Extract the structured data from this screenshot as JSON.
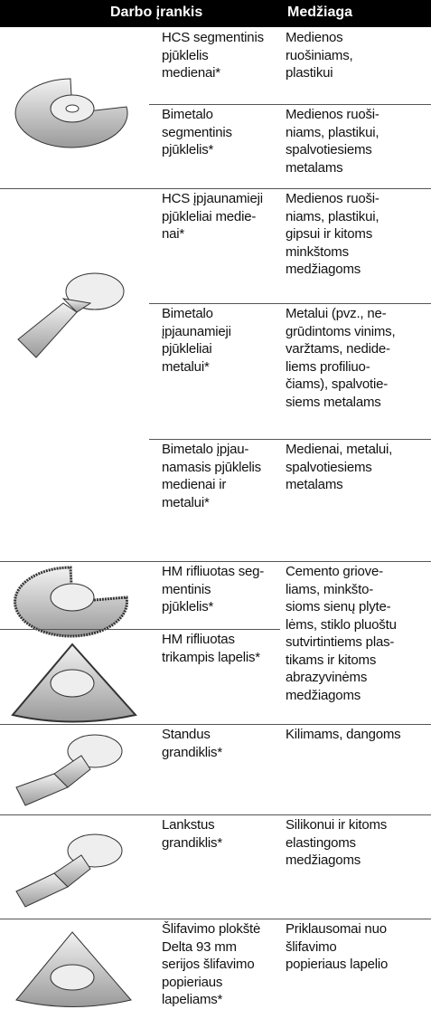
{
  "header": {
    "tool": "Darbo įrankis",
    "material": "Medžiaga"
  },
  "rows": [
    {
      "tool": [
        "HCS segmentinis",
        "pjūklelis",
        "medienai*"
      ],
      "material": [
        "Medienos",
        "ruošiniams,",
        "plastikui"
      ]
    },
    {
      "tool": [
        "Bimetalo",
        "segmentinis",
        "pjūklelis*"
      ],
      "material": [
        "Medienos ruoši-",
        "niams, plastikui,",
        "spalvotiesiems",
        "metalams"
      ]
    },
    {
      "tool": [
        "HCS įpjaunamieji",
        "pjūkleliai medie-",
        "nai*"
      ],
      "material": [
        "Medienos ruoši-",
        "niams, plastikui,",
        "gipsui ir kitoms",
        "minkštoms",
        "medžiagoms"
      ]
    },
    {
      "tool": [
        "Bimetalo",
        "įpjaunamieji",
        "pjūkleliai",
        "metalui*"
      ],
      "material": [
        "Metalui (pvz., ne-",
        "grūdintoms vinims,",
        "varžtams, nedide-",
        "liems profiliuo-",
        "čiams), spalvotie-",
        "siems metalams"
      ]
    },
    {
      "tool": [
        "Bimetalo įpjau-",
        "namasis pjūklelis",
        "medienai ir",
        "metalui*"
      ],
      "material": [
        "Medienai, metalui,",
        "spalvotiesiems",
        "metalams"
      ]
    },
    {
      "tool": [
        "HM rifliuotas seg-",
        "mentinis",
        "pjūklelis*"
      ],
      "material": [
        "Cemento griove-",
        "liams, minkšto-",
        "sioms sienų plyte-",
        "lėms, stiklo pluoštu",
        "sutvirtintiems plas-",
        "tikams ir kitoms",
        "abrazyvinėms",
        "medžiagoms"
      ]
    },
    {
      "tool": [
        "HM rifliuotas",
        "trikampis lapelis*"
      ]
    },
    {
      "tool": [
        "Standus",
        "grandiklis*"
      ],
      "material": [
        "Kilimams, dangoms"
      ]
    },
    {
      "tool": [
        "Lankstus",
        "grandiklis*"
      ],
      "material": [
        "Silikonui ir kitoms",
        "elastingoms",
        "medžiagoms"
      ]
    },
    {
      "tool": [
        "Šlifavimo plokštė",
        "Delta 93 mm",
        "serijos šlifavimo",
        "popieriaus",
        "lapeliams*"
      ],
      "material": [
        "Priklausomai nuo",
        "šlifavimo",
        "popieriaus lapelio"
      ]
    }
  ]
}
